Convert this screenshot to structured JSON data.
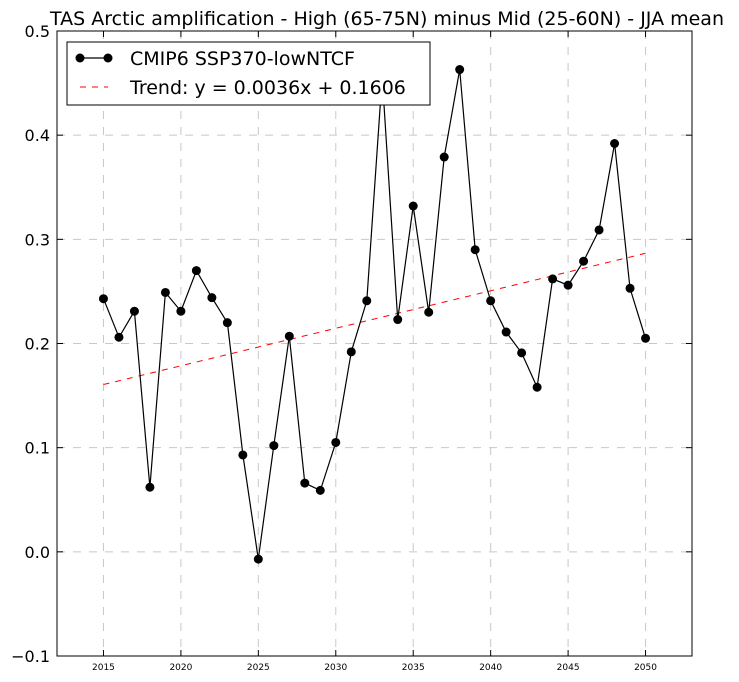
{
  "chart_data": {
    "type": "line",
    "title": "TAS Arctic amplification - High (65-75N) minus Mid (25-60N) - JJA mean",
    "xlabel": "",
    "ylabel": "",
    "xlim": [
      2012,
      2053
    ],
    "ylim": [
      -0.1,
      0.5
    ],
    "x_ticks": [
      "2015",
      "2020",
      "2025",
      "2030",
      "2035",
      "2040",
      "2045",
      "2050"
    ],
    "y_ticks": [
      "−0.1",
      "0.0",
      "0.1",
      "0.2",
      "0.3",
      "0.4",
      "0.5"
    ],
    "grid": true,
    "legend_position": "top-left",
    "series": [
      {
        "name": "CMIP6 SSP370-lowNTCF",
        "color": "#000000",
        "marker": "circle",
        "x": [
          2015,
          2016,
          2017,
          2018,
          2019,
          2020,
          2021,
          2022,
          2023,
          2024,
          2025,
          2026,
          2027,
          2028,
          2029,
          2030,
          2031,
          2032,
          2033,
          2034,
          2035,
          2036,
          2037,
          2038,
          2039,
          2040,
          2041,
          2042,
          2043,
          2044,
          2045,
          2046,
          2047,
          2048,
          2049,
          2050
        ],
        "values": [
          0.243,
          0.206,
          0.231,
          0.062,
          0.249,
          0.231,
          0.27,
          0.244,
          0.22,
          0.093,
          -0.007,
          0.102,
          0.207,
          0.066,
          0.059,
          0.105,
          0.192,
          0.241,
          0.456,
          0.223,
          0.332,
          0.23,
          0.379,
          0.463,
          0.29,
          0.241,
          0.211,
          0.191,
          0.158,
          0.262,
          0.256,
          0.279,
          0.309,
          0.392,
          0.253,
          0.205
        ]
      }
    ],
    "trend": {
      "name": "Trend: y = 0.0036x + 0.1606",
      "color": "#ff0000",
      "style": "dashed",
      "slope": 0.0036,
      "intercept": 0.1606,
      "x_start": 2015,
      "x_end": 2050
    }
  }
}
